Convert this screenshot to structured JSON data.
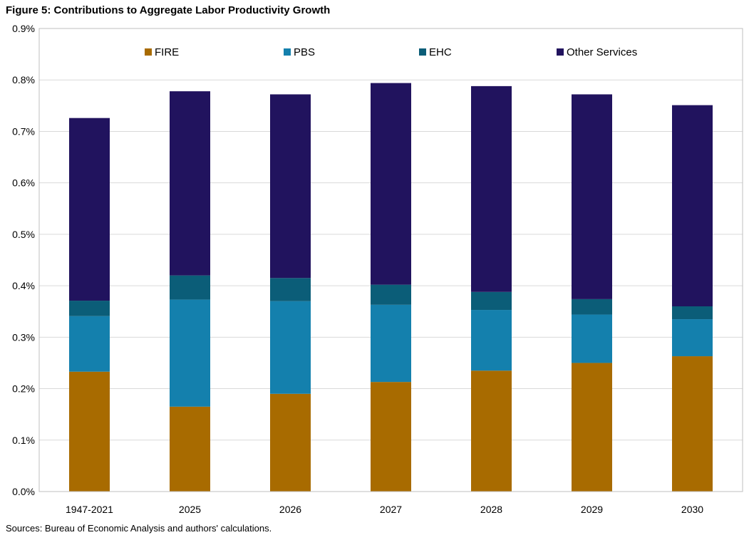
{
  "figure": {
    "title": "Figure 5: Contributions to Aggregate Labor Productivity Growth",
    "source": "Sources: Bureau of Economic Analysis and authors' calculations."
  },
  "colors": {
    "FIRE": "#a86b00",
    "PBS": "#1480ad",
    "EHC": "#0b5d78",
    "Other Services": "#21135e",
    "grid": "#d9d9d9",
    "axis": "#000000"
  },
  "chart_data": {
    "type": "bar",
    "stacked": true,
    "title": "Figure 5: Contributions to Aggregate Labor Productivity Growth",
    "xlabel": "",
    "ylabel": "",
    "ylim": [
      0,
      0.009
    ],
    "y_ticks": [
      0,
      0.001,
      0.002,
      0.003,
      0.004,
      0.005,
      0.006,
      0.007,
      0.008,
      0.009
    ],
    "y_tick_labels": [
      "0.0%",
      "0.1%",
      "0.2%",
      "0.3%",
      "0.4%",
      "0.5%",
      "0.6%",
      "0.7%",
      "0.8%",
      "0.9%"
    ],
    "grid": true,
    "legend_position": "top",
    "categories": [
      "1947-2021",
      "2025",
      "2026",
      "2027",
      "2028",
      "2029",
      "2030"
    ],
    "series": [
      {
        "name": "FIRE",
        "values": [
          0.00233,
          0.00165,
          0.0019,
          0.00213,
          0.00235,
          0.0025,
          0.00263
        ]
      },
      {
        "name": "PBS",
        "values": [
          0.00108,
          0.00208,
          0.0018,
          0.0015,
          0.00118,
          0.00094,
          0.00072
        ]
      },
      {
        "name": "EHC",
        "values": [
          0.0003,
          0.00047,
          0.00045,
          0.00039,
          0.00035,
          0.0003,
          0.00025
        ]
      },
      {
        "name": "Other Services",
        "values": [
          0.00355,
          0.00358,
          0.00357,
          0.00392,
          0.004,
          0.00398,
          0.00391
        ]
      }
    ]
  }
}
